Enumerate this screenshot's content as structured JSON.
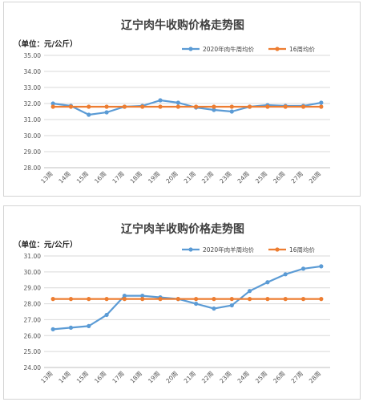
{
  "chart_data": [
    {
      "type": "line",
      "title": "辽宁肉牛收购价格走势图",
      "unit_label": "（单位：元/公斤）",
      "categories": [
        "13周",
        "14周",
        "15周",
        "16周",
        "17周",
        "18周",
        "19周",
        "20周",
        "21周",
        "22周",
        "23周",
        "24周",
        "25周",
        "26周",
        "27周",
        "28周"
      ],
      "y_ticks": [
        "28.00",
        "29.00",
        "30.00",
        "31.00",
        "32.00",
        "33.00",
        "34.00",
        "35.00"
      ],
      "ylim": [
        28,
        35
      ],
      "grid": true,
      "legend_position": "top-right",
      "series": [
        {
          "name": "2020年肉牛周均价",
          "color": "#5b9bd5",
          "values": [
            32.0,
            31.85,
            31.3,
            31.45,
            31.8,
            31.85,
            32.2,
            32.05,
            31.75,
            31.6,
            31.5,
            31.8,
            31.9,
            31.85,
            31.85,
            32.05
          ]
        },
        {
          "name": "16周均价",
          "color": "#ed7d31",
          "values": [
            31.8,
            31.8,
            31.8,
            31.8,
            31.8,
            31.8,
            31.8,
            31.8,
            31.8,
            31.8,
            31.8,
            31.8,
            31.8,
            31.8,
            31.8,
            31.8
          ]
        }
      ]
    },
    {
      "type": "line",
      "title": "辽宁肉羊收购价格走势图",
      "unit_label": "（单位：元/公斤）",
      "categories": [
        "13周",
        "14周",
        "15周",
        "16周",
        "17周",
        "18周",
        "19周",
        "20周",
        "21周",
        "22周",
        "23周",
        "24周",
        "25周",
        "26周",
        "27周",
        "28周"
      ],
      "y_ticks": [
        "24.00",
        "25.00",
        "26.00",
        "27.00",
        "28.00",
        "29.00",
        "30.00",
        "31.00"
      ],
      "ylim": [
        24,
        31
      ],
      "grid": true,
      "legend_position": "top-right",
      "series": [
        {
          "name": "2020年肉羊周均价",
          "color": "#5b9bd5",
          "values": [
            26.4,
            26.5,
            26.6,
            27.3,
            28.5,
            28.5,
            28.4,
            28.3,
            28.0,
            27.7,
            27.9,
            28.8,
            29.35,
            29.85,
            30.2,
            30.35
          ]
        },
        {
          "name": "16周均价",
          "color": "#ed7d31",
          "values": [
            28.3,
            28.3,
            28.3,
            28.3,
            28.3,
            28.3,
            28.3,
            28.3,
            28.3,
            28.3,
            28.3,
            28.3,
            28.3,
            28.3,
            28.3,
            28.3
          ]
        }
      ]
    }
  ]
}
